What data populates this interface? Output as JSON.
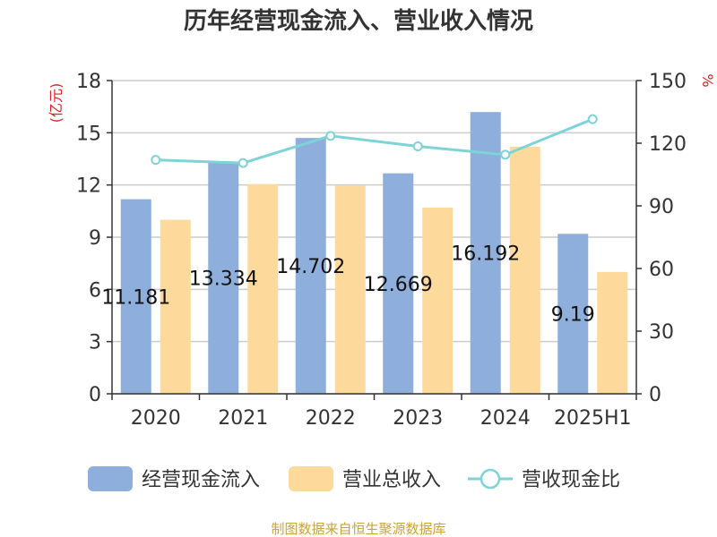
{
  "chart_data": {
    "type": "bar",
    "title": "历年经营现金流入、营业收入情况",
    "categories": [
      "2020",
      "2021",
      "2022",
      "2023",
      "2024",
      "2025H1"
    ],
    "series": [
      {
        "name": "经营现金流入",
        "type": "bar",
        "axis": "left",
        "color": "#8eaedb",
        "values": [
          11.181,
          13.334,
          14.702,
          12.669,
          16.192,
          9.19
        ],
        "labels": [
          "11.181",
          "13.334",
          "14.702",
          "12.669",
          "16.192",
          "9.19"
        ]
      },
      {
        "name": "营业总收入",
        "type": "bar",
        "axis": "left",
        "color": "#fdd99b",
        "values": [
          10.0,
          12.05,
          11.95,
          10.7,
          14.2,
          7.0
        ]
      },
      {
        "name": "营收现金比",
        "type": "line",
        "axis": "right",
        "color": "#7dd3d6",
        "values": [
          112,
          110.5,
          123.5,
          118.5,
          114.5,
          131.5
        ]
      }
    ],
    "y_left": {
      "unit": "(亿元)",
      "ylim": [
        0,
        18
      ],
      "ticks": [
        "0",
        "3",
        "6",
        "9",
        "12",
        "15",
        "18"
      ]
    },
    "y_right": {
      "unit": "%",
      "ylim": [
        0,
        150
      ],
      "ticks": [
        "0",
        "30",
        "60",
        "90",
        "120",
        "150"
      ]
    },
    "grid": true,
    "legend": "bottom"
  },
  "source_text": "制图数据来自恒生聚源数据库"
}
